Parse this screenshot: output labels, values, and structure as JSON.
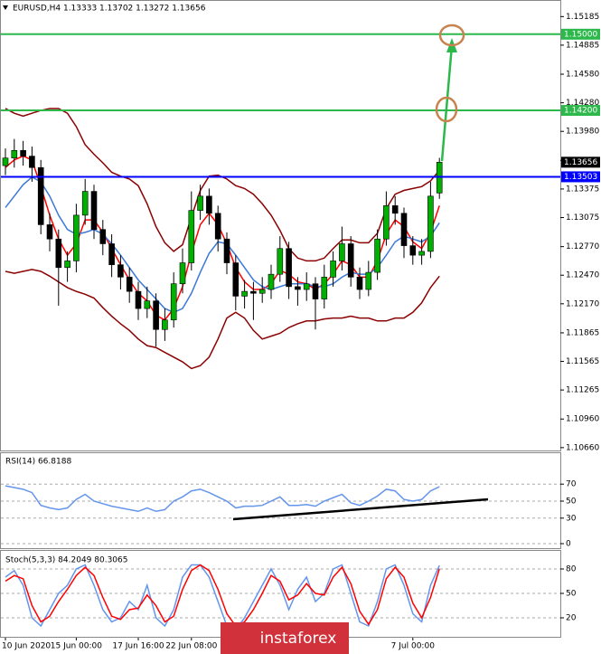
{
  "chart_data": [
    {
      "type": "candlestick",
      "title": "EURUSD,H4 1.13333 1.13702 1.13272 1.13656",
      "categories": [
        "10 Jun 2020",
        null,
        null,
        null,
        null,
        null,
        null,
        null,
        "15 Jun 00:00",
        null,
        null,
        null,
        null,
        null,
        null,
        "17 Jun 16:00",
        null,
        null,
        null,
        null,
        null,
        "22 Jun 08:00",
        null,
        null,
        null,
        null,
        null,
        null,
        null,
        null,
        null,
        null,
        null,
        null,
        null,
        null,
        null,
        null,
        null,
        null,
        null,
        null,
        null,
        null,
        null,
        null,
        "7 Jul 00:00",
        null,
        null,
        null
      ],
      "open": [
        1.1362,
        1.137,
        1.1378,
        1.1372,
        1.136,
        1.13,
        1.1285,
        1.1255,
        1.1262,
        1.131,
        1.1335,
        1.1295,
        1.128,
        1.1258,
        1.1245,
        1.123,
        1.1212,
        1.122,
        1.119,
        1.12,
        1.1238,
        1.126,
        1.1315,
        1.133,
        1.1312,
        1.1285,
        1.126,
        1.1225,
        1.123,
        1.1228,
        1.1232,
        1.1248,
        1.1275,
        1.1235,
        1.1232,
        1.1238,
        1.1222,
        1.1245,
        1.1262,
        1.128,
        1.1245,
        1.1232,
        1.125,
        1.1285,
        1.132,
        1.1312,
        1.1278,
        1.1268,
        1.1272,
        1.13333
      ],
      "high": [
        1.138,
        1.139,
        1.1388,
        1.1382,
        1.1368,
        1.1312,
        1.1295,
        1.1272,
        1.1322,
        1.1348,
        1.1342,
        1.1305,
        1.129,
        1.1268,
        1.1255,
        1.124,
        1.1235,
        1.1228,
        1.1212,
        1.125,
        1.1275,
        1.1335,
        1.1342,
        1.1338,
        1.132,
        1.1292,
        1.1268,
        1.1242,
        1.124,
        1.1245,
        1.1258,
        1.1288,
        1.1282,
        1.1245,
        1.125,
        1.1245,
        1.1258,
        1.1272,
        1.1298,
        1.1288,
        1.1255,
        1.1262,
        1.1295,
        1.1335,
        1.133,
        1.1318,
        1.1288,
        1.1285,
        1.1345,
        1.13702
      ],
      "low": [
        1.1352,
        1.136,
        1.1362,
        1.1345,
        1.129,
        1.1272,
        1.1215,
        1.124,
        1.125,
        1.13,
        1.1285,
        1.1268,
        1.1245,
        1.1232,
        1.1218,
        1.12,
        1.1202,
        1.1172,
        1.1178,
        1.1192,
        1.1228,
        1.1252,
        1.1305,
        1.13,
        1.1272,
        1.1248,
        1.121,
        1.1212,
        1.12,
        1.1218,
        1.1222,
        1.124,
        1.1222,
        1.1215,
        1.122,
        1.119,
        1.1212,
        1.1235,
        1.1252,
        1.1235,
        1.1222,
        1.1225,
        1.1242,
        1.1278,
        1.13,
        1.1265,
        1.1258,
        1.1258,
        1.1265,
        1.13272
      ],
      "close": [
        1.137,
        1.1378,
        1.1372,
        1.136,
        1.13,
        1.1285,
        1.1255,
        1.1262,
        1.131,
        1.1335,
        1.1295,
        1.128,
        1.1258,
        1.1245,
        1.123,
        1.1212,
        1.122,
        1.119,
        1.12,
        1.1238,
        1.126,
        1.1315,
        1.133,
        1.1312,
        1.1285,
        1.126,
        1.1225,
        1.123,
        1.1228,
        1.1232,
        1.1248,
        1.1275,
        1.1235,
        1.1232,
        1.1238,
        1.1222,
        1.1245,
        1.1262,
        1.128,
        1.1245,
        1.1232,
        1.125,
        1.1285,
        1.132,
        1.1312,
        1.1278,
        1.1268,
        1.1272,
        1.133,
        1.13656
      ],
      "up_color": "#00b000",
      "down_color": "#000000",
      "overlays": [
        {
          "color": "#8b0000",
          "values": [
            1.1422,
            1.1417,
            1.1414,
            1.1417,
            1.142,
            1.1422,
            1.1422,
            1.1417,
            1.1403,
            1.1384,
            1.1374,
            1.1365,
            1.1355,
            1.1351,
            1.1348,
            1.1341,
            1.1322,
            1.1298,
            1.1281,
            1.1272,
            1.1279,
            1.1308,
            1.1336,
            1.1351,
            1.1352,
            1.1348,
            1.1341,
            1.1338,
            1.1332,
            1.1322,
            1.131,
            1.1294,
            1.1275,
            1.1265,
            1.1262,
            1.1262,
            1.1265,
            1.1275,
            1.1284,
            1.1284,
            1.1281,
            1.1281,
            1.1291,
            1.1317,
            1.1332,
            1.1336,
            1.1338,
            1.134,
            1.1346,
            1.1357
          ]
        },
        {
          "color": "#8b0000",
          "values": [
            1.1251,
            1.1249,
            1.1251,
            1.1253,
            1.1251,
            1.1246,
            1.124,
            1.1234,
            1.123,
            1.1227,
            1.1223,
            1.1213,
            1.1204,
            1.1196,
            1.1189,
            1.118,
            1.1173,
            1.1171,
            1.1166,
            1.1161,
            1.1156,
            1.1149,
            1.1152,
            1.1161,
            1.118,
            1.1202,
            1.1208,
            1.1202,
            1.1189,
            1.118,
            1.1183,
            1.1186,
            1.1192,
            1.1196,
            1.1199,
            1.1199,
            1.1201,
            1.1202,
            1.1202,
            1.1204,
            1.1202,
            1.1202,
            1.1199,
            1.1199,
            1.1202,
            1.1202,
            1.1208,
            1.1218,
            1.1234,
            1.1246
          ]
        },
        {
          "color": "#ff0000",
          "values": [
            1.136,
            1.1368,
            1.1372,
            1.1368,
            1.134,
            1.131,
            1.1285,
            1.1268,
            1.128,
            1.1305,
            1.1305,
            1.1292,
            1.1275,
            1.1258,
            1.1242,
            1.1228,
            1.122,
            1.1205,
            1.12,
            1.1212,
            1.1235,
            1.127,
            1.13,
            1.1312,
            1.13,
            1.128,
            1.1255,
            1.124,
            1.1232,
            1.1232,
            1.1238,
            1.1252,
            1.1248,
            1.124,
            1.1238,
            1.1232,
            1.1238,
            1.1248,
            1.1262,
            1.1258,
            1.1245,
            1.1245,
            1.1262,
            1.129,
            1.1305,
            1.1298,
            1.1282,
            1.1275,
            1.1292,
            1.132
          ]
        },
        {
          "color": "#3c78d8",
          "values": [
            1.1318,
            1.133,
            1.1342,
            1.135,
            1.1345,
            1.133,
            1.131,
            1.1295,
            1.129,
            1.1292,
            1.1295,
            1.129,
            1.128,
            1.1268,
            1.1255,
            1.1242,
            1.1232,
            1.1222,
            1.1212,
            1.1208,
            1.1212,
            1.1228,
            1.125,
            1.127,
            1.1282,
            1.128,
            1.1268,
            1.1255,
            1.1242,
            1.1235,
            1.1232,
            1.1235,
            1.1238,
            1.1238,
            1.1238,
            1.1235,
            1.1235,
            1.1238,
            1.1245,
            1.125,
            1.1248,
            1.1248,
            1.1255,
            1.1268,
            1.1282,
            1.1288,
            1.1285,
            1.1282,
            1.1288,
            1.1302
          ]
        }
      ],
      "levels": [
        {
          "value": 1.15,
          "label": "1.15000",
          "color": "#2db84b"
        },
        {
          "value": 1.142,
          "label": "1.14200",
          "color": "#2db84b"
        },
        {
          "value": 1.13503,
          "label": "1.13503",
          "color": "#0000ff"
        },
        {
          "value": 1.13656,
          "label": "1.13656",
          "color": "#000000",
          "line": false
        }
      ],
      "ylim": [
        1.1063,
        1.1534
      ],
      "yticks": [
        1.15185,
        1.14885,
        {
          "value": 1.1458,
          "label": "1.14580"
        },
        {
          "value": 1.1428,
          "label": "1.14280"
        },
        {
          "value": 1.1398,
          "label": "1.13980"
        },
        1.13675,
        1.13375,
        1.13075,
        {
          "value": 1.1277,
          "label": "1.12770"
        },
        {
          "value": 1.1247,
          "label": "1.12470"
        },
        {
          "value": 1.1217,
          "label": "1.12170"
        },
        1.11865,
        1.11565,
        1.11265,
        {
          "value": 1.1096,
          "label": "1.10960"
        },
        {
          "value": 1.1066,
          "label": "1.10660"
        }
      ]
    },
    {
      "type": "line",
      "title": "RSI(14) 66.8188",
      "series": [
        {
          "color": "#6495ed",
          "values": [
            68,
            66,
            64,
            60,
            45,
            42,
            40,
            42,
            52,
            58,
            50,
            47,
            44,
            42,
            40,
            38,
            42,
            38,
            40,
            50,
            55,
            62,
            64,
            60,
            55,
            50,
            42,
            44,
            44,
            45,
            50,
            55,
            45,
            45,
            46,
            44,
            50,
            54,
            58,
            48,
            45,
            50,
            56,
            64,
            62,
            52,
            50,
            52,
            62,
            67
          ]
        }
      ],
      "ylim": [
        0,
        100
      ],
      "yticks": [
        0,
        30,
        50,
        70
      ],
      "grid": true
    },
    {
      "type": "line",
      "title": "Stoch(5,3,3) 84.2049 80.3065",
      "series": [
        {
          "color": "#6495ed",
          "values": [
            70,
            78,
            60,
            20,
            10,
            30,
            50,
            60,
            80,
            85,
            60,
            30,
            15,
            20,
            40,
            30,
            60,
            20,
            10,
            30,
            70,
            85,
            85,
            70,
            40,
            10,
            5,
            20,
            40,
            60,
            80,
            60,
            30,
            55,
            70,
            40,
            50,
            80,
            85,
            50,
            15,
            10,
            40,
            80,
            85,
            60,
            25,
            15,
            60,
            84.2
          ]
        },
        {
          "color": "#ff0000",
          "values": [
            65,
            72,
            68,
            35,
            15,
            22,
            40,
            55,
            72,
            82,
            72,
            45,
            22,
            18,
            30,
            32,
            48,
            35,
            15,
            22,
            55,
            78,
            85,
            78,
            55,
            25,
            10,
            15,
            30,
            50,
            72,
            65,
            42,
            48,
            62,
            50,
            48,
            70,
            82,
            62,
            28,
            12,
            30,
            68,
            82,
            70,
            38,
            20,
            45,
            80.3
          ]
        }
      ],
      "ylim": [
        0,
        100
      ],
      "yticks": [
        20,
        50,
        80
      ],
      "grid": true
    }
  ],
  "watermark": "instaforex"
}
